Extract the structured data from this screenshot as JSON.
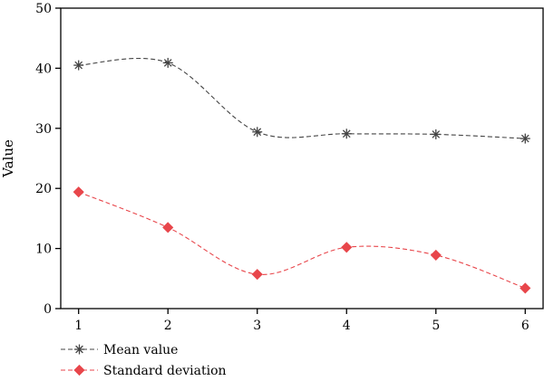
{
  "chart_data": {
    "type": "line",
    "ylabel": "Value",
    "xlabel": "",
    "x": [
      1,
      2,
      3,
      4,
      5,
      6
    ],
    "xlim": [
      0.8,
      6.2
    ],
    "ylim": [
      0,
      50
    ],
    "xticks": [
      "1",
      "2",
      "3",
      "4",
      "5",
      "6"
    ],
    "yticks": [
      "0",
      "10",
      "20",
      "30",
      "40",
      "50"
    ],
    "grid": false,
    "legend_position": "bottom-left",
    "series": [
      {
        "name": "Mean value",
        "values": [
          40.5,
          40.9,
          29.4,
          29.1,
          29.0,
          28.3
        ],
        "color": "#444444",
        "marker": "asterisk",
        "line": "dashed"
      },
      {
        "name": "Standard deviation",
        "values": [
          19.4,
          13.5,
          5.7,
          10.2,
          8.9,
          3.4
        ],
        "color": "#e8464b",
        "marker": "diamond",
        "line": "dashed"
      }
    ]
  }
}
